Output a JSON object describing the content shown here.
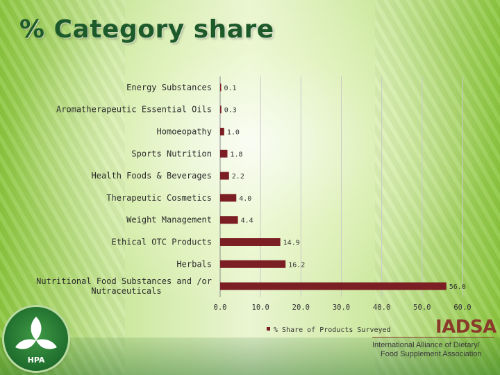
{
  "page": {
    "title": "% Category share"
  },
  "chart_data": {
    "type": "bar",
    "orientation": "horizontal",
    "categories": [
      "Energy Substances",
      "Aromatherapeutic Essential Oils",
      "Homoeopathy",
      "Sports Nutrition",
      "Health Foods & Beverages",
      "Therapeutic Cosmetics",
      "Weight Management",
      "Ethical OTC Products",
      "Herbals",
      [
        "Nutritional Food Substances and /or",
        "Nutraceuticals"
      ]
    ],
    "series": [
      {
        "name": "% Share of Products Surveyed",
        "values": [
          0.1,
          0.3,
          1.0,
          1.8,
          2.2,
          4.0,
          4.4,
          14.9,
          16.2,
          56.0
        ],
        "value_labels": [
          "0.1",
          "0.3",
          "1.0",
          "1.8",
          "2.2",
          "4.0",
          "4.4",
          "14.9",
          "16.2",
          "56.0"
        ]
      }
    ],
    "xlim": [
      0,
      60
    ],
    "xticks": [
      "0.0",
      "10.0",
      "20.0",
      "30.0",
      "40.0",
      "50.0",
      "60.0"
    ],
    "grid": true,
    "legend": "bottom",
    "bar_color": "#7b1f24"
  },
  "footer": {
    "hpa_logo_text": "HPA",
    "iadsa_abbrev": "IADSA",
    "iadsa_line1": "International Alliance of Dietary/",
    "iadsa_line2": "Food Supplement Association"
  }
}
